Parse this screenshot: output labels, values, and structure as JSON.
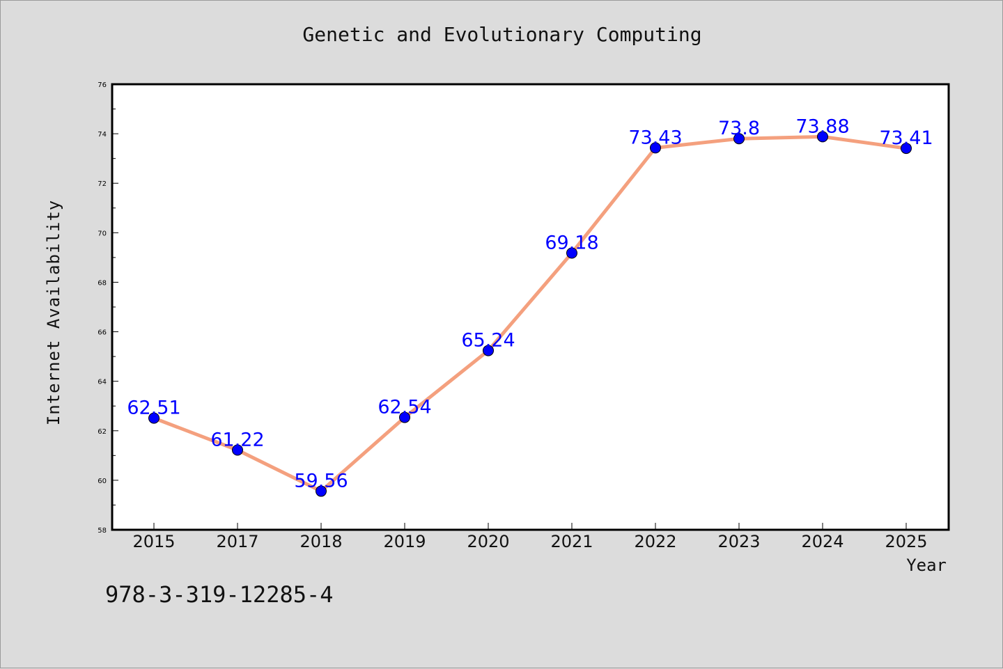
{
  "chart_data": {
    "type": "line",
    "title": "Genetic and Evolutionary Computing",
    "xlabel": "Year",
    "ylabel": "Internet Availability",
    "categories": [
      "2015",
      "2017",
      "2018",
      "2019",
      "2020",
      "2021",
      "2022",
      "2023",
      "2024",
      "2025"
    ],
    "series": [
      {
        "values": [
          62.51,
          61.22,
          59.56,
          62.54,
          65.24,
          69.18,
          73.43,
          73.8,
          73.88,
          73.41
        ],
        "labels": [
          "62.51",
          "61.22",
          "59.56",
          "62.54",
          "65.24",
          "69.18",
          "73.43",
          "73.8",
          "73.88",
          "73.41"
        ],
        "line_color": "#f4a07e",
        "marker_color": "#0000ff"
      }
    ],
    "ylim": [
      58,
      76
    ],
    "yticks": [
      "58",
      "60",
      "62",
      "64",
      "66",
      "68",
      "70",
      "72",
      "74",
      "76"
    ],
    "grid": false,
    "legend": "none"
  },
  "footer": {
    "isbn": "978-3-319-12285-4"
  }
}
